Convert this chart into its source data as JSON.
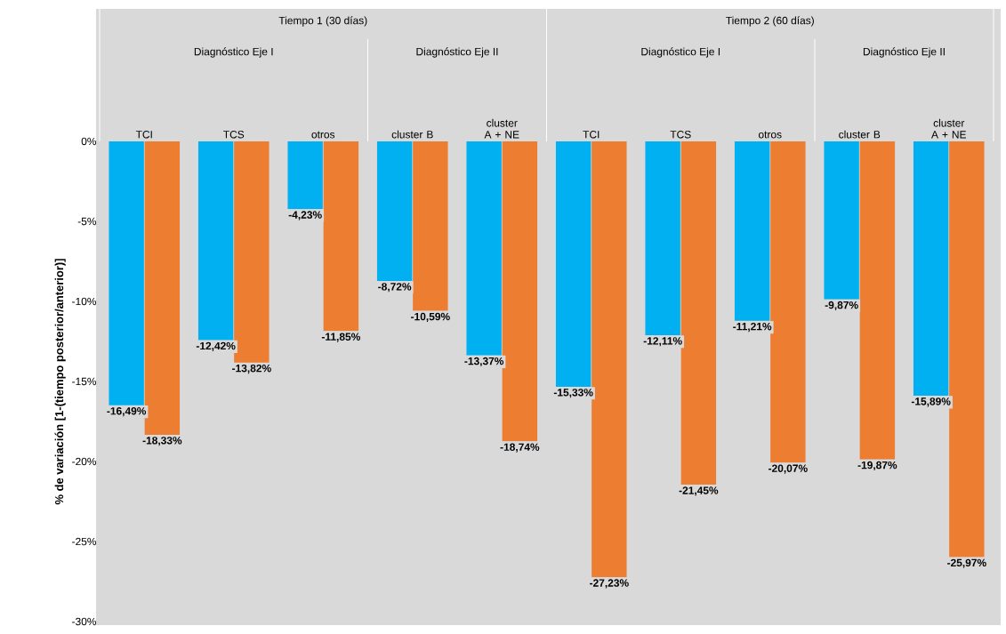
{
  "chart_data": {
    "type": "bar",
    "ylabel": "% de variación [1-(tiempo posterior/anterior)]",
    "categories": [
      "TCI",
      "TCS",
      "otros",
      "cluster B",
      "cluster A + NE",
      "TCI",
      "TCS",
      "otros",
      "cluster B",
      "cluster A + NE"
    ],
    "annotations": [
      "Tiempo 1 (30 días)",
      "Tiempo 2 (60 días)",
      "Diagnóstico Eje I",
      "Diagnóstico Eje II",
      "Diagnóstico Eje I",
      "Diagnóstico Eje II"
    ],
    "series": [
      {
        "color": "#00b0f0",
        "values": [
          -16.49,
          -12.42,
          -4.23,
          -8.72,
          -13.37,
          -15.33,
          -12.11,
          -11.21,
          -9.87,
          -15.89
        ],
        "value_labels": [
          "-16,49%",
          "-12,42%",
          "-4,23%",
          "-8,72%",
          "-13,37%",
          "-15,33%",
          "-12,11%",
          "-11,21%",
          "-9,87%",
          "-15,89%"
        ]
      },
      {
        "color": "#ed7d31",
        "values": [
          -18.33,
          -13.82,
          -11.85,
          -10.59,
          -18.74,
          -27.23,
          -21.45,
          -20.07,
          -19.87,
          -25.97
        ],
        "value_labels": [
          "-18,33%",
          "-13,82%",
          "-11,85%",
          "-10,59%",
          "-18,74%",
          "-27,23%",
          "-21,45%",
          "-20,07%",
          "-19,87%",
          "-25,97%"
        ]
      }
    ],
    "ylim": [
      -30,
      0
    ],
    "yticks": [
      {
        "value": 0,
        "label": "0%"
      },
      {
        "value": -5,
        "label": "-5%"
      },
      {
        "value": -10,
        "label": "-10%"
      },
      {
        "value": -15,
        "label": "-15%"
      },
      {
        "value": -20,
        "label": "-20%"
      },
      {
        "value": -25,
        "label": "-25%"
      },
      {
        "value": -30,
        "label": "-30%"
      }
    ]
  }
}
